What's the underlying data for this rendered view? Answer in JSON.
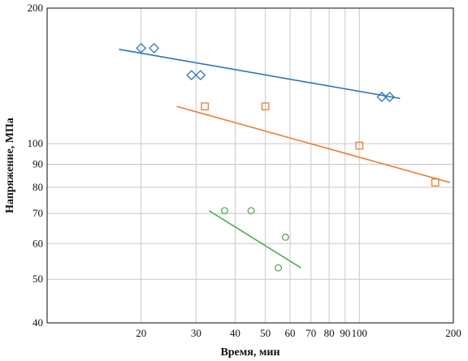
{
  "chart_data": {
    "type": "scatter",
    "title": "",
    "xlabel": "Время, мин",
    "ylabel": "Напряжение, МПа",
    "xscale": "log",
    "yscale": "log",
    "xlim": [
      10,
      200
    ],
    "ylim": [
      40,
      200
    ],
    "grid": true,
    "legend": "none",
    "x_ticks": [
      {
        "value": 20,
        "label": "20"
      },
      {
        "value": 30,
        "label": "30"
      },
      {
        "value": 40,
        "label": "40"
      },
      {
        "value": 50,
        "label": "50"
      },
      {
        "value": 60,
        "label": "60"
      },
      {
        "value": 70,
        "label": "70"
      },
      {
        "value": 80,
        "label": "80"
      },
      {
        "value": 90,
        "label": "90"
      },
      {
        "value": 100,
        "label": "100"
      },
      {
        "value": 200,
        "label": "200"
      }
    ],
    "y_ticks": [
      {
        "value": 40,
        "label": "40"
      },
      {
        "value": 50,
        "label": "50"
      },
      {
        "value": 60,
        "label": "60"
      },
      {
        "value": 70,
        "label": "70"
      },
      {
        "value": 80,
        "label": "80"
      },
      {
        "value": 90,
        "label": "90"
      },
      {
        "value": 100,
        "label": "100"
      },
      {
        "value": 200,
        "label": "200"
      }
    ],
    "series": [
      {
        "marker": "diamond",
        "color": "#2e75b6",
        "points": [
          [
            20,
            163
          ],
          [
            22,
            163
          ],
          [
            29,
            142
          ],
          [
            31,
            142
          ],
          [
            118,
            127
          ],
          [
            125,
            127
          ]
        ],
        "fit": [
          [
            17,
            162
          ],
          [
            135,
            126
          ]
        ]
      },
      {
        "marker": "square",
        "color": "#ed7d31",
        "points": [
          [
            32,
            121
          ],
          [
            50,
            121
          ],
          [
            100,
            99
          ],
          [
            175,
            82
          ]
        ],
        "fit": [
          [
            26,
            121
          ],
          [
            195,
            82
          ]
        ]
      },
      {
        "marker": "circle",
        "color": "#4caf50",
        "points": [
          [
            37,
            71
          ],
          [
            45,
            71
          ],
          [
            58,
            62
          ],
          [
            55,
            53
          ]
        ],
        "fit": [
          [
            33,
            71
          ],
          [
            65,
            53
          ]
        ]
      }
    ]
  }
}
